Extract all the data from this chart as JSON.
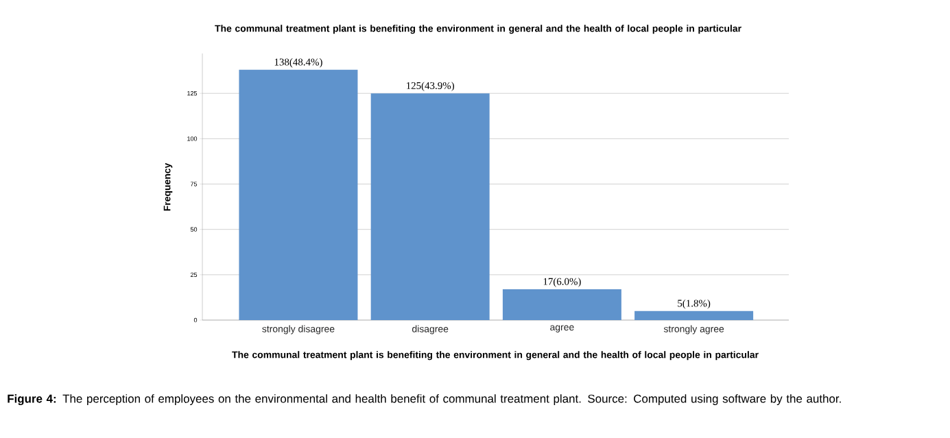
{
  "chart_data": {
    "type": "bar",
    "title": "The communal treatment plant is benefiting the environment in general and the health of local people in particular",
    "xlabel": "The communal treatment plant is benefiting the environment in general and the health of local people in particular",
    "ylabel": "Frequency",
    "categories": [
      "strongly disagree",
      "disagree",
      "agree",
      "strongly agree"
    ],
    "values": [
      138,
      125,
      17,
      5
    ],
    "value_labels": [
      "138(48.4%)",
      "125(43.9%)",
      "17(6.0%)",
      "5(1.8%)"
    ],
    "color": "#5f93cc",
    "ylim": [
      0,
      147
    ],
    "yticks": [
      0,
      25,
      50,
      75,
      100,
      125
    ],
    "grid": "y",
    "annotations": [
      "**Figure 4:** The perception of employees on the environmental and health benefit of communal treatment plant. Source: Computed using software by the author."
    ]
  }
}
